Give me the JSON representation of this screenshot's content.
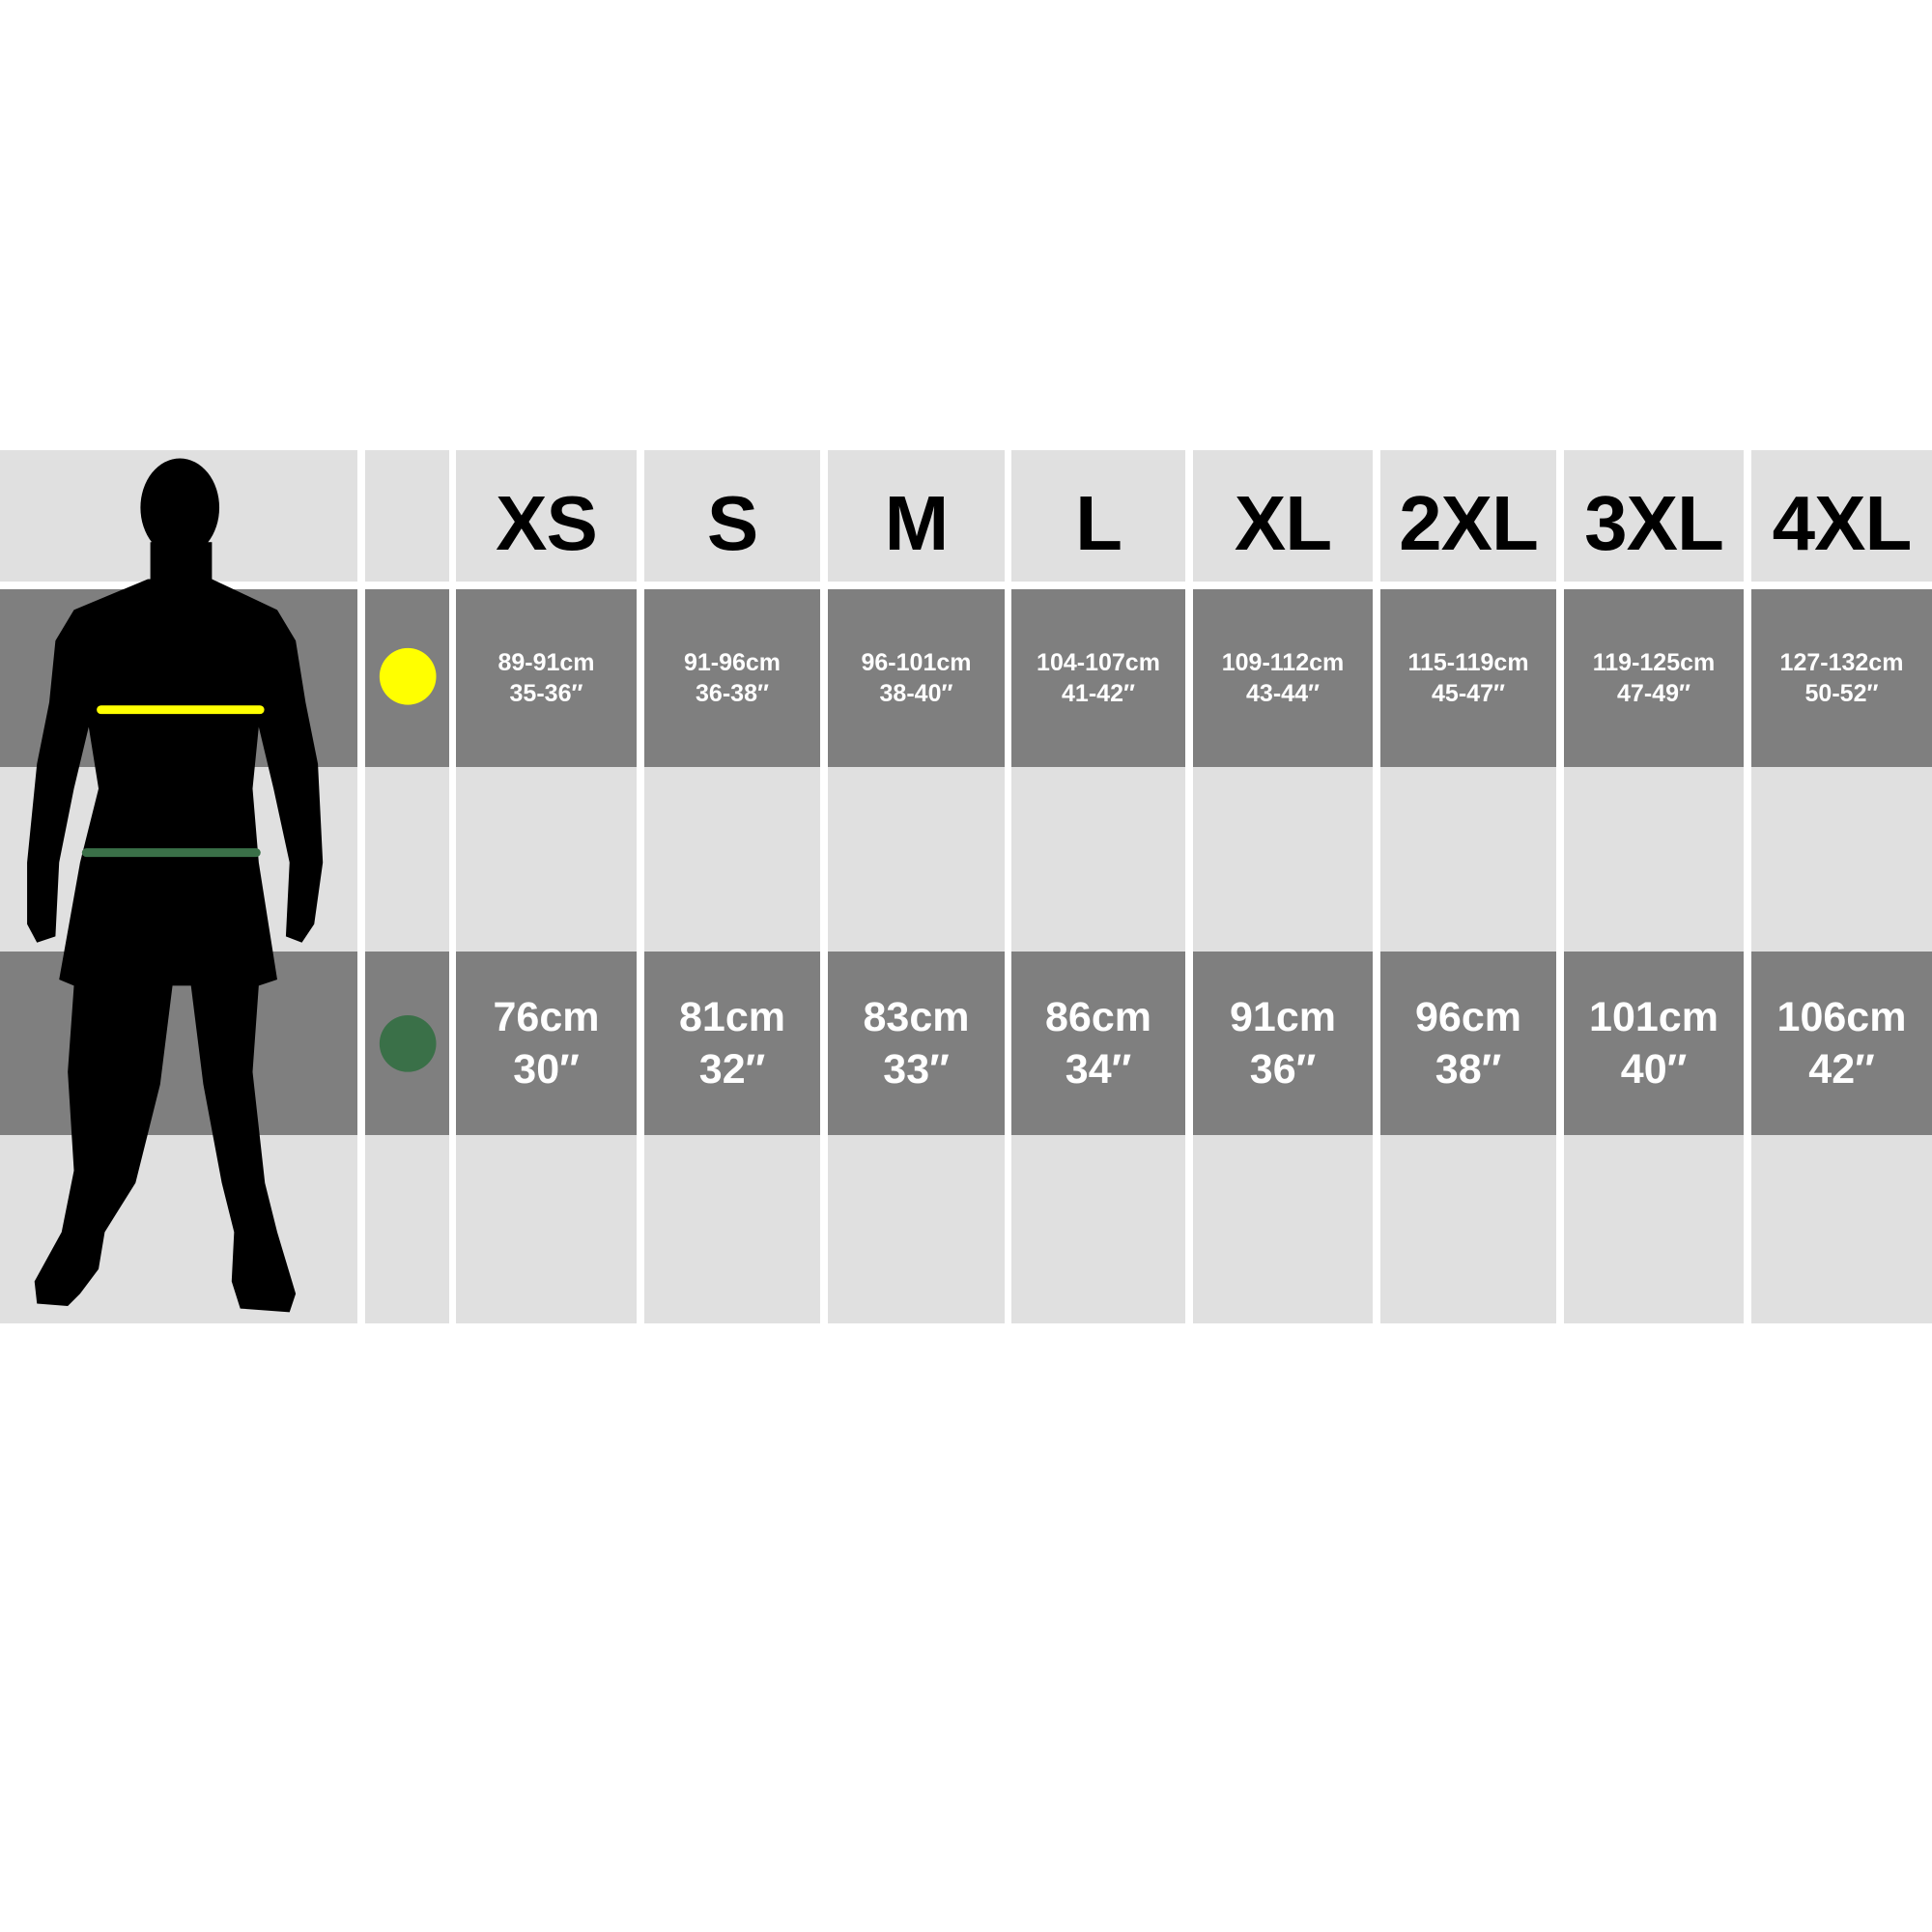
{
  "sizes": [
    "XS",
    "S",
    "M",
    "L",
    "XL",
    "2XL",
    "3XL",
    "4XL"
  ],
  "rows": {
    "chest": {
      "marker_color": "#ffff00",
      "values": [
        {
          "cm": "89-91cm",
          "in": "35-36″"
        },
        {
          "cm": "91-96cm",
          "in": "36-38″"
        },
        {
          "cm": "96-101cm",
          "in": "38-40″"
        },
        {
          "cm": "104-107cm",
          "in": "41-42″"
        },
        {
          "cm": "109-112cm",
          "in": "43-44″"
        },
        {
          "cm": "115-119cm",
          "in": "45-47″"
        },
        {
          "cm": "119-125cm",
          "in": "47-49″"
        },
        {
          "cm": "127-132cm",
          "in": "50-52″"
        }
      ]
    },
    "waist": {
      "marker_color": "#3a7048",
      "values": [
        {
          "cm": "76cm",
          "in": "30″"
        },
        {
          "cm": "81cm",
          "in": "32″"
        },
        {
          "cm": "83cm",
          "in": "33″"
        },
        {
          "cm": "86cm",
          "in": "34″"
        },
        {
          "cm": "91cm",
          "in": "36″"
        },
        {
          "cm": "96cm",
          "in": "38″"
        },
        {
          "cm": "101cm",
          "in": "40″"
        },
        {
          "cm": "106cm",
          "in": "42″"
        }
      ]
    }
  },
  "colors": {
    "light": "#e0e0e0",
    "dark": "#7f7f7f",
    "silhouette": "#000000"
  }
}
